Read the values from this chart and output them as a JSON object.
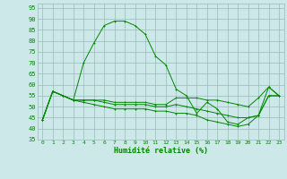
{
  "x": [
    0,
    1,
    2,
    3,
    4,
    5,
    6,
    7,
    8,
    9,
    10,
    11,
    12,
    13,
    14,
    15,
    16,
    17,
    18,
    19,
    20,
    21,
    22,
    23
  ],
  "y_main": [
    44,
    57,
    55,
    53,
    70,
    79,
    87,
    89,
    89,
    87,
    83,
    73,
    69,
    58,
    55,
    47,
    52,
    49,
    43,
    42,
    45,
    46,
    59,
    55
  ],
  "y_low1": [
    44,
    57,
    55,
    53,
    53,
    53,
    53,
    52,
    52,
    52,
    52,
    51,
    51,
    54,
    54,
    54,
    53,
    53,
    52,
    51,
    50,
    54,
    59,
    55
  ],
  "y_low2": [
    44,
    57,
    55,
    53,
    53,
    53,
    52,
    51,
    51,
    51,
    51,
    50,
    50,
    51,
    50,
    49,
    48,
    47,
    46,
    45,
    45,
    46,
    55,
    55
  ],
  "y_low3": [
    44,
    57,
    55,
    53,
    52,
    51,
    50,
    49,
    49,
    49,
    49,
    48,
    48,
    47,
    47,
    46,
    44,
    43,
    42,
    41,
    42,
    46,
    55,
    55
  ],
  "line_color": "#008800",
  "bg_color": "#cce8e8",
  "grid_color": "#99bbbb",
  "xlabel": "Humidité relative (%)",
  "xlim": [
    -0.5,
    23.5
  ],
  "ylim": [
    35,
    97
  ],
  "yticks": [
    35,
    40,
    45,
    50,
    55,
    60,
    65,
    70,
    75,
    80,
    85,
    90,
    95
  ],
  "xticks": [
    0,
    1,
    2,
    3,
    4,
    5,
    6,
    7,
    8,
    9,
    10,
    11,
    12,
    13,
    14,
    15,
    16,
    17,
    18,
    19,
    20,
    21,
    22,
    23
  ]
}
